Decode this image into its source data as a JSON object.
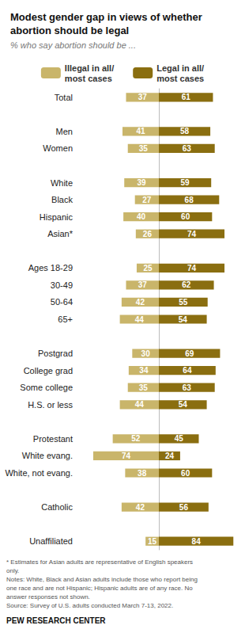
{
  "chart_data": {
    "type": "bar",
    "orientation": "horizontal",
    "title": "Modest gender gap in views of whether abortion should be legal",
    "subtitle": "% who say abortion should be ...",
    "categories": [
      "Total",
      null,
      "Men",
      "Women",
      null,
      "White",
      "Black",
      "Hispanic",
      "Asian*",
      null,
      "Ages 18-29",
      "30-49",
      "50-64",
      "65+",
      null,
      "Postgrad",
      "College grad",
      "Some college",
      "H.S. or less",
      null,
      "Protestant",
      "White evang.",
      "White, not evang.",
      null,
      "Catholic",
      null,
      "Unaffiliated"
    ],
    "series": [
      {
        "name": "Illegal in all/\nmost cases",
        "color": "#c9b56a",
        "values": [
          37,
          null,
          41,
          35,
          null,
          39,
          27,
          40,
          26,
          null,
          25,
          37,
          42,
          44,
          null,
          30,
          34,
          35,
          44,
          null,
          52,
          74,
          38,
          null,
          42,
          null,
          15
        ]
      },
      {
        "name": "Legal in all/\nmost cases",
        "color": "#8a6e10",
        "values": [
          61,
          null,
          58,
          63,
          null,
          59,
          68,
          60,
          74,
          null,
          74,
          62,
          55,
          54,
          null,
          69,
          64,
          63,
          54,
          null,
          45,
          24,
          60,
          null,
          56,
          null,
          84
        ]
      }
    ],
    "xlim": [
      0,
      90
    ],
    "data_labels": true,
    "tick_labels": "y",
    "grid": false,
    "legend": "top",
    "annotations": [
      "* Estimates for Asian adults are representative of English speakers",
      "only.",
      "Notes: White, Black and Asian adults include those who report being",
      "one race and are not Hispanic; Hispanic adults are of any race. No",
      "answer responses not shown.",
      "Source: Survey of U.S. adults conducted March 7-13, 2022.",
      "PEW RESEARCH CENTER"
    ]
  }
}
